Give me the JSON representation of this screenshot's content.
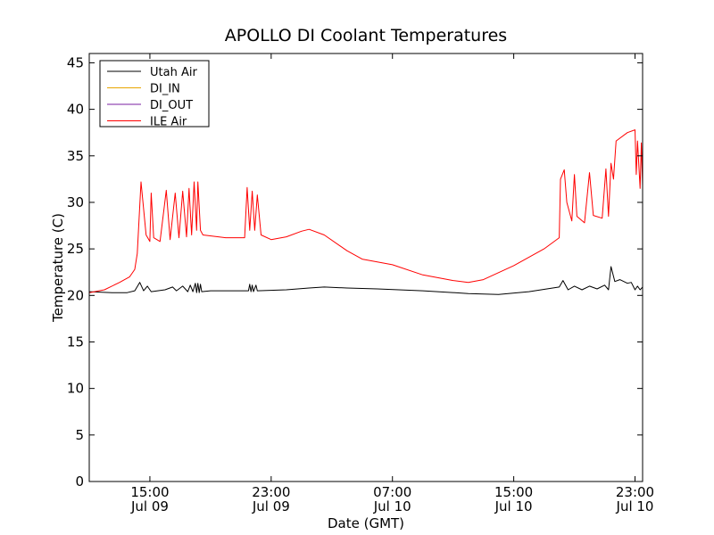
{
  "chart_data": {
    "type": "line",
    "title": "APOLLO DI Coolant Temperatures",
    "xlabel": "Date (GMT)",
    "ylabel": "Temperature (C)",
    "ylim": [
      0,
      46
    ],
    "yticks": [
      0,
      5,
      10,
      15,
      20,
      25,
      30,
      35,
      40,
      45
    ],
    "xlim": [
      "2013-07-09 11:00",
      "2013-07-10 23:30"
    ],
    "xticks": [
      {
        "time": "2013-07-09 15:00",
        "line1": "15:00",
        "line2": "Jul 09"
      },
      {
        "time": "2013-07-09 23:00",
        "line1": "23:00",
        "line2": "Jul 09"
      },
      {
        "time": "2013-07-10 07:00",
        "line1": "07:00",
        "line2": "Jul 10"
      },
      {
        "time": "2013-07-10 15:00",
        "line1": "15:00",
        "line2": "Jul 10"
      },
      {
        "time": "2013-07-10 23:00",
        "line1": "23:00",
        "line2": "Jul 10"
      }
    ],
    "legend_position": "top-left",
    "grid": false,
    "series": [
      {
        "name": "Utah Air",
        "color": "#000000",
        "points": [
          [
            "2013-07-09 11:00",
            20.4
          ],
          [
            "2013-07-09 12:30",
            20.3
          ],
          [
            "2013-07-09 13:30",
            20.3
          ],
          [
            "2013-07-09 14:00",
            20.5
          ],
          [
            "2013-07-09 14:20",
            21.4
          ],
          [
            "2013-07-09 14:35",
            20.5
          ],
          [
            "2013-07-09 14:50",
            21.0
          ],
          [
            "2013-07-09 15:05",
            20.4
          ],
          [
            "2013-07-09 16:00",
            20.6
          ],
          [
            "2013-07-09 16:30",
            20.9
          ],
          [
            "2013-07-09 16:45",
            20.5
          ],
          [
            "2013-07-09 17:10",
            21.0
          ],
          [
            "2013-07-09 17:30",
            20.4
          ],
          [
            "2013-07-09 17:40",
            21.1
          ],
          [
            "2013-07-09 17:50",
            20.4
          ],
          [
            "2013-07-09 18:00",
            21.3
          ],
          [
            "2013-07-09 18:05",
            20.3
          ],
          [
            "2013-07-09 18:10",
            21.3
          ],
          [
            "2013-07-09 18:15",
            20.3
          ],
          [
            "2013-07-09 18:20",
            21.2
          ],
          [
            "2013-07-09 18:25",
            20.4
          ],
          [
            "2013-07-09 19:00",
            20.5
          ],
          [
            "2013-07-09 21:30",
            20.5
          ],
          [
            "2013-07-09 21:35",
            21.2
          ],
          [
            "2013-07-09 21:40",
            20.4
          ],
          [
            "2013-07-09 21:45",
            21.1
          ],
          [
            "2013-07-09 21:50",
            20.4
          ],
          [
            "2013-07-09 22:00",
            21.1
          ],
          [
            "2013-07-09 22:05",
            20.5
          ],
          [
            "2013-07-10 00:00",
            20.6
          ],
          [
            "2013-07-10 01:30",
            20.8
          ],
          [
            "2013-07-10 02:30",
            20.9
          ],
          [
            "2013-07-10 04:00",
            20.8
          ],
          [
            "2013-07-10 06:00",
            20.7
          ],
          [
            "2013-07-10 09:00",
            20.5
          ],
          [
            "2013-07-10 12:00",
            20.2
          ],
          [
            "2013-07-10 14:00",
            20.1
          ],
          [
            "2013-07-10 16:00",
            20.4
          ],
          [
            "2013-07-10 18:00",
            20.9
          ],
          [
            "2013-07-10 18:15",
            21.6
          ],
          [
            "2013-07-10 18:35",
            20.6
          ],
          [
            "2013-07-10 19:00",
            21.0
          ],
          [
            "2013-07-10 19:30",
            20.6
          ],
          [
            "2013-07-10 20:00",
            21.0
          ],
          [
            "2013-07-10 20:30",
            20.7
          ],
          [
            "2013-07-10 21:00",
            21.1
          ],
          [
            "2013-07-10 21:15",
            20.6
          ],
          [
            "2013-07-10 21:25",
            23.1
          ],
          [
            "2013-07-10 21:40",
            21.5
          ],
          [
            "2013-07-10 22:00",
            21.7
          ],
          [
            "2013-07-10 22:30",
            21.3
          ],
          [
            "2013-07-10 22:45",
            21.4
          ],
          [
            "2013-07-10 23:00",
            20.6
          ],
          [
            "2013-07-10 23:10",
            21.0
          ],
          [
            "2013-07-10 23:20",
            20.6
          ],
          [
            "2013-07-10 23:30",
            20.9
          ]
        ]
      },
      {
        "name": "DI_IN",
        "color": "#e8a500",
        "points": []
      },
      {
        "name": "DI_OUT",
        "color": "#7a1fa2",
        "points": []
      },
      {
        "name": "ILE Air",
        "color": "#ff0000",
        "points": [
          [
            "2013-07-09 11:00",
            20.3
          ],
          [
            "2013-07-09 12:00",
            20.6
          ],
          [
            "2013-07-09 13:00",
            21.4
          ],
          [
            "2013-07-09 13:40",
            22.0
          ],
          [
            "2013-07-09 14:00",
            22.8
          ],
          [
            "2013-07-09 14:10",
            24.5
          ],
          [
            "2013-07-09 14:25",
            32.2
          ],
          [
            "2013-07-09 14:45",
            26.5
          ],
          [
            "2013-07-09 15:00",
            25.8
          ],
          [
            "2013-07-09 15:05",
            31.0
          ],
          [
            "2013-07-09 15:15",
            26.2
          ],
          [
            "2013-07-09 15:40",
            25.8
          ],
          [
            "2013-07-09 16:05",
            31.3
          ],
          [
            "2013-07-09 16:20",
            26.0
          ],
          [
            "2013-07-09 16:40",
            31.0
          ],
          [
            "2013-07-09 16:55",
            26.2
          ],
          [
            "2013-07-09 17:10",
            31.2
          ],
          [
            "2013-07-09 17:25",
            26.3
          ],
          [
            "2013-07-09 17:35",
            31.5
          ],
          [
            "2013-07-09 17:45",
            26.5
          ],
          [
            "2013-07-09 17:55",
            32.2
          ],
          [
            "2013-07-09 18:05",
            27.0
          ],
          [
            "2013-07-09 18:10",
            32.2
          ],
          [
            "2013-07-09 18:20",
            27.0
          ],
          [
            "2013-07-09 18:30",
            26.5
          ],
          [
            "2013-07-09 20:00",
            26.2
          ],
          [
            "2013-07-09 21:15",
            26.2
          ],
          [
            "2013-07-09 21:25",
            31.6
          ],
          [
            "2013-07-09 21:35",
            27.0
          ],
          [
            "2013-07-09 21:45",
            31.2
          ],
          [
            "2013-07-09 21:55",
            27.0
          ],
          [
            "2013-07-09 22:05",
            30.8
          ],
          [
            "2013-07-09 22:20",
            26.5
          ],
          [
            "2013-07-09 23:00",
            26.0
          ],
          [
            "2013-07-10 00:00",
            26.3
          ],
          [
            "2013-07-10 01:00",
            26.9
          ],
          [
            "2013-07-10 01:30",
            27.1
          ],
          [
            "2013-07-10 02:30",
            26.5
          ],
          [
            "2013-07-10 04:00",
            24.8
          ],
          [
            "2013-07-10 05:00",
            23.9
          ],
          [
            "2013-07-10 07:00",
            23.3
          ],
          [
            "2013-07-10 09:00",
            22.2
          ],
          [
            "2013-07-10 11:00",
            21.6
          ],
          [
            "2013-07-10 12:00",
            21.4
          ],
          [
            "2013-07-10 13:00",
            21.7
          ],
          [
            "2013-07-10 15:00",
            23.2
          ],
          [
            "2013-07-10 17:00",
            25.0
          ],
          [
            "2013-07-10 18:00",
            26.2
          ],
          [
            "2013-07-10 18:05",
            32.5
          ],
          [
            "2013-07-10 18:20",
            33.5
          ],
          [
            "2013-07-10 18:30",
            30.0
          ],
          [
            "2013-07-10 18:50",
            28.0
          ],
          [
            "2013-07-10 19:00",
            33.0
          ],
          [
            "2013-07-10 19:10",
            28.5
          ],
          [
            "2013-07-10 19:40",
            27.8
          ],
          [
            "2013-07-10 20:00",
            33.2
          ],
          [
            "2013-07-10 20:15",
            28.6
          ],
          [
            "2013-07-10 20:50",
            28.3
          ],
          [
            "2013-07-10 21:05",
            33.6
          ],
          [
            "2013-07-10 21:15",
            28.5
          ],
          [
            "2013-07-10 21:25",
            34.2
          ],
          [
            "2013-07-10 21:35",
            32.5
          ],
          [
            "2013-07-10 21:45",
            36.6
          ],
          [
            "2013-07-10 22:30",
            37.5
          ],
          [
            "2013-07-10 23:00",
            37.8
          ],
          [
            "2013-07-10 23:05",
            33.0
          ],
          [
            "2013-07-10 23:10",
            36.6
          ],
          [
            "2013-07-10 23:20",
            31.5
          ],
          [
            "2013-07-10 23:25",
            36.4
          ],
          [
            "2013-07-10 23:30",
            31.8
          ]
        ]
      }
    ]
  }
}
